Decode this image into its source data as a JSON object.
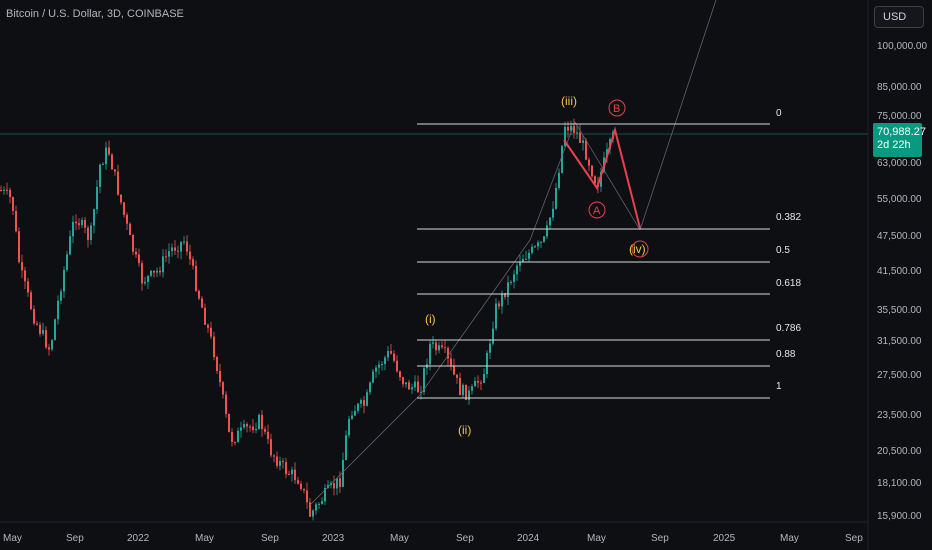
{
  "header": {
    "symbol_title": "Bitcoin / U.S. Dollar, 3D, COINBASE",
    "currency_button": "USD"
  },
  "price_tag": {
    "price": "70,988.27",
    "countdown": "2d 22h"
  },
  "y_axis_labels": [
    "100,000.00",
    "85,000.00",
    "75,000.00",
    "63,000.00",
    "55,000.00",
    "47,500.00",
    "41,500.00",
    "35,500.00",
    "31,500.00",
    "27,500.00",
    "23,500.00",
    "20,500.00",
    "18,100.00",
    "15,900.00"
  ],
  "x_axis_labels": [
    "May",
    "Sep",
    "2022",
    "May",
    "Sep",
    "2023",
    "May",
    "Sep",
    "2024",
    "May",
    "Sep",
    "2025",
    "May",
    "Sep"
  ],
  "fib_levels": [
    "0",
    "0.382",
    "0.5",
    "0.618",
    "0.786",
    "0.88",
    "1"
  ],
  "wave_labels": {
    "i": "(i)",
    "ii": "(ii)",
    "iii": "(iii)",
    "iv": "(iv)",
    "A": "A",
    "B": "B"
  },
  "colors": {
    "background": "#0e0f13",
    "up": "#26a69a",
    "down": "#ef5350",
    "fib_line": "#d8d8d8",
    "wave_yellow": "#f5c542",
    "wave_red": "#e8414f"
  }
}
